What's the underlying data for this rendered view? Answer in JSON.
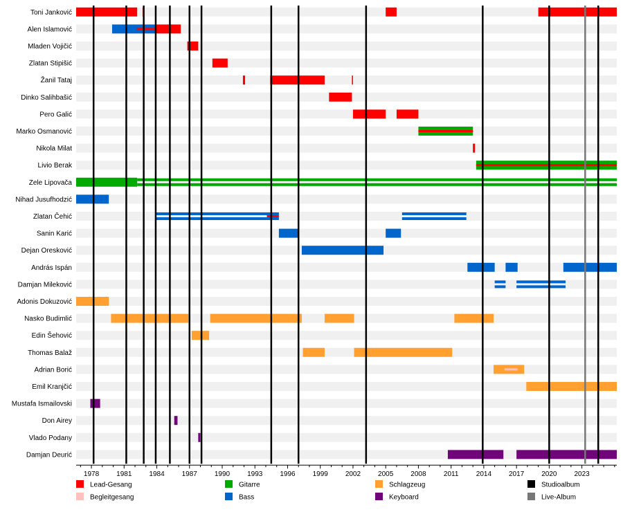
{
  "chart_data": {
    "type": "timeline",
    "x_range": [
      1976.6,
      2026.2
    ],
    "x_ticks": [
      "1978",
      "1981",
      "1984",
      "1987",
      "1990",
      "1993",
      "1996",
      "1999",
      "2002",
      "2005",
      "2008",
      "2011",
      "2014",
      "2017",
      "2020",
      "2023"
    ],
    "roles": {
      "lead": {
        "label": "Lead-Gesang",
        "color": "#ff0000"
      },
      "backing": {
        "label": "Begleitgesang",
        "color": "#ffc0c0"
      },
      "guitar": {
        "label": "Gitarre",
        "color": "#00aa00"
      },
      "bass": {
        "label": "Bass",
        "color": "#0066cc"
      },
      "drums": {
        "label": "Schlagzeug",
        "color": "#ffa030"
      },
      "keys": {
        "label": "Keyboard",
        "color": "#70057a"
      },
      "studio": {
        "label": "Studioalbum",
        "color": "#000000"
      },
      "live": {
        "label": "Live-Album",
        "color": "#777777"
      }
    },
    "members": [
      {
        "name": "Toni Janković",
        "bars": [
          {
            "role": "lead",
            "start": 1976.6,
            "end": 1982.2
          },
          {
            "role": "lead",
            "start": 1982.7,
            "end": 1982.8
          },
          {
            "role": "lead",
            "start": 2005.0,
            "end": 2006.0
          },
          {
            "role": "lead",
            "start": 2019.0,
            "end": 2026.2
          }
        ]
      },
      {
        "name": "Alen Islamović",
        "bars": [
          {
            "role": "bass",
            "start": 1979.9,
            "end": 1983.9
          },
          {
            "role": "lead",
            "start": 1983.9,
            "end": 1986.2
          },
          {
            "role": "lead",
            "start": 1982.2,
            "end": 1983.9,
            "thin": true
          }
        ]
      },
      {
        "name": "Mladen Vojičić",
        "bars": [
          {
            "role": "lead",
            "start": 1986.8,
            "end": 1987.8
          }
        ]
      },
      {
        "name": "Zlatan Stipišić",
        "bars": [
          {
            "role": "lead",
            "start": 1989.1,
            "end": 1990.5
          }
        ]
      },
      {
        "name": "Žanil Tataj",
        "bars": [
          {
            "role": "lead",
            "start": 1991.9,
            "end": 1992.1
          },
          {
            "role": "lead",
            "start": 1994.4,
            "end": 1999.4
          },
          {
            "role": "lead",
            "start": 2001.9,
            "end": 2002.0
          }
        ]
      },
      {
        "name": "Dinko Salihbašić",
        "bars": [
          {
            "role": "lead",
            "start": 1999.8,
            "end": 2001.9
          }
        ]
      },
      {
        "name": "Pero Galić",
        "bars": [
          {
            "role": "lead",
            "start": 2002.0,
            "end": 2005.0
          },
          {
            "role": "lead",
            "start": 2006.0,
            "end": 2008.0
          }
        ]
      },
      {
        "name": "Marko Osmanović",
        "bars": [
          {
            "role": "guitar",
            "start": 2008.0,
            "end": 2013.0
          },
          {
            "role": "lead",
            "start": 2008.0,
            "end": 2013.0,
            "thin": true
          }
        ]
      },
      {
        "name": "Nikola Milat",
        "bars": [
          {
            "role": "lead",
            "start": 2013.0,
            "end": 2013.2
          }
        ]
      },
      {
        "name": "Livio Berak",
        "bars": [
          {
            "role": "guitar",
            "start": 2013.3,
            "end": 2026.2
          },
          {
            "role": "lead",
            "start": 2013.3,
            "end": 2026.2,
            "thin": true
          }
        ]
      },
      {
        "name": "Zele Lipovača",
        "bars": [
          {
            "role": "guitar",
            "start": 1976.6,
            "end": 1982.2
          },
          {
            "role": "guitar",
            "start": 1982.2,
            "end": 2026.2,
            "split": true
          }
        ]
      },
      {
        "name": "Nihad Jusufhodzić",
        "bars": [
          {
            "role": "bass",
            "start": 1976.6,
            "end": 1979.6
          }
        ]
      },
      {
        "name": "Zlatan Čehić",
        "bars": [
          {
            "role": "bass",
            "start": 1983.9,
            "end": 1995.2,
            "split": true
          },
          {
            "role": "lead",
            "start": 1994.1,
            "end": 1995.2,
            "thin": true
          },
          {
            "role": "bass",
            "start": 2006.5,
            "end": 2012.4,
            "split": true
          }
        ]
      },
      {
        "name": "Sanin Karić",
        "bars": [
          {
            "role": "bass",
            "start": 1995.2,
            "end": 1997.0
          },
          {
            "role": "bass",
            "start": 2005.0,
            "end": 2006.4
          }
        ]
      },
      {
        "name": "Dejan Oresković",
        "bars": [
          {
            "role": "bass",
            "start": 1997.3,
            "end": 2004.8
          }
        ]
      },
      {
        "name": "András Ispán",
        "bars": [
          {
            "role": "bass",
            "start": 2012.5,
            "end": 2015.0
          },
          {
            "role": "bass",
            "start": 2016.0,
            "end": 2017.1
          },
          {
            "role": "bass",
            "start": 2021.3,
            "end": 2026.2
          }
        ]
      },
      {
        "name": "Damjan Mileković",
        "bars": [
          {
            "role": "bass",
            "start": 2015.0,
            "end": 2016.0,
            "split": true
          },
          {
            "role": "bass",
            "start": 2017.0,
            "end": 2021.5,
            "split": true
          }
        ]
      },
      {
        "name": "Adonis Dokuzović",
        "bars": [
          {
            "role": "drums",
            "start": 1976.6,
            "end": 1979.6
          }
        ]
      },
      {
        "name": "Nasko Budimlić",
        "bars": [
          {
            "role": "drums",
            "start": 1979.8,
            "end": 1986.9
          },
          {
            "role": "drums",
            "start": 1988.9,
            "end": 1997.3
          },
          {
            "role": "drums",
            "start": 1999.4,
            "end": 2002.1
          },
          {
            "role": "drums",
            "start": 2011.3,
            "end": 2014.9
          }
        ]
      },
      {
        "name": "Edin Šehović",
        "bars": [
          {
            "role": "drums",
            "start": 1987.2,
            "end": 1988.8
          }
        ]
      },
      {
        "name": "Thomas Balaž",
        "bars": [
          {
            "role": "drums",
            "start": 1997.4,
            "end": 1999.4
          },
          {
            "role": "drums",
            "start": 2002.1,
            "end": 2011.1
          }
        ]
      },
      {
        "name": "Adrian Borić",
        "bars": [
          {
            "role": "drums",
            "start": 2014.9,
            "end": 2017.7
          },
          {
            "role": "backing",
            "start": 2015.9,
            "end": 2017.1,
            "thin": true
          }
        ]
      },
      {
        "name": "Emil Kranjčić",
        "bars": [
          {
            "role": "drums",
            "start": 2017.9,
            "end": 2026.2
          }
        ]
      },
      {
        "name": "Mustafa Ismailovski",
        "bars": [
          {
            "role": "keys",
            "start": 1977.9,
            "end": 1978.8
          }
        ]
      },
      {
        "name": "Don Airey",
        "bars": [
          {
            "role": "keys",
            "start": 1985.6,
            "end": 1985.9
          }
        ]
      },
      {
        "name": "Vlado Podany",
        "bars": [
          {
            "role": "keys",
            "start": 1987.8,
            "end": 1988.0
          }
        ]
      },
      {
        "name": "Damjan Deurić",
        "bars": [
          {
            "role": "keys",
            "start": 2010.7,
            "end": 2015.8
          },
          {
            "role": "keys",
            "start": 2017.0,
            "end": 2026.2
          }
        ]
      }
    ],
    "studio_albums": [
      1978.2,
      1981.2,
      1982.8,
      1983.9,
      1985.2,
      1987.0,
      1988.1,
      1994.5,
      1997.0,
      2003.2,
      2013.9,
      2020.0,
      2024.5
    ],
    "live_albums": [
      2023.3
    ],
    "legend_placement": "bottom"
  }
}
